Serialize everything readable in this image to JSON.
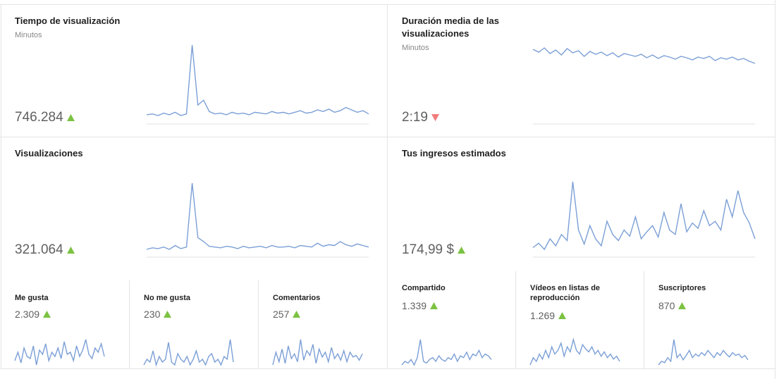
{
  "cards": [
    {
      "title": "Tiempo de visualización",
      "subtitle": "Minutos",
      "value": "746.284",
      "trend": "up",
      "sparkline": [
        10,
        11,
        9,
        12,
        10,
        13,
        9,
        11,
        96,
        22,
        28,
        14,
        11,
        12,
        10,
        13,
        11,
        12,
        10,
        13,
        12,
        11,
        14,
        12,
        13,
        11,
        13,
        15,
        12,
        13,
        16,
        14,
        17,
        13,
        15,
        19,
        16,
        13,
        15,
        11
      ]
    },
    {
      "title": "Duración media de las visualizaciones",
      "subtitle": "Minutos",
      "value": "2:19",
      "trend": "down",
      "sparkline": [
        80,
        76,
        82,
        74,
        79,
        72,
        81,
        75,
        78,
        70,
        77,
        73,
        76,
        71,
        75,
        69,
        74,
        72,
        70,
        73,
        68,
        72,
        67,
        71,
        69,
        66,
        70,
        68,
        65,
        69,
        67,
        70,
        64,
        68,
        66,
        69,
        65,
        67,
        63,
        60
      ]
    },
    {
      "title": "Visualizaciones",
      "value": "321.064",
      "trend": "up",
      "sparkline": [
        9,
        11,
        10,
        12,
        9,
        14,
        10,
        12,
        94,
        24,
        19,
        13,
        12,
        11,
        13,
        12,
        10,
        13,
        11,
        12,
        13,
        11,
        14,
        12,
        12,
        13,
        11,
        14,
        13,
        12,
        17,
        13,
        15,
        14,
        19,
        15,
        13,
        16,
        14,
        12
      ]
    },
    {
      "title": "Tus ingresos estimados",
      "value": "174,99 $",
      "trend": "up",
      "sparkline": [
        20,
        25,
        18,
        30,
        22,
        35,
        28,
        95,
        40,
        24,
        45,
        30,
        22,
        50,
        35,
        28,
        40,
        33,
        55,
        30,
        38,
        45,
        32,
        60,
        40,
        35,
        70,
        38,
        48,
        42,
        62,
        45,
        50,
        40,
        75,
        55,
        85,
        60,
        48,
        30
      ]
    },
    {
      "title": "Me gusta",
      "value": "2.309",
      "trend": "up",
      "sparkline": [
        40,
        60,
        35,
        70,
        50,
        45,
        75,
        30,
        65,
        55,
        80,
        40,
        60,
        50,
        70,
        45,
        85,
        55,
        60,
        40,
        75,
        50,
        65,
        90,
        55,
        45,
        70,
        60,
        80,
        50
      ]
    },
    {
      "title": "No me gusta",
      "value": "230",
      "trend": "up",
      "sparkline": [
        20,
        30,
        25,
        45,
        20,
        35,
        25,
        30,
        60,
        25,
        20,
        40,
        30,
        25,
        35,
        20,
        30,
        45,
        25,
        30,
        20,
        35,
        40,
        25,
        30,
        20,
        35,
        30,
        65,
        25
      ]
    },
    {
      "title": "Comentarios",
      "value": "257",
      "trend": "up",
      "sparkline": [
        10,
        50,
        20,
        60,
        15,
        70,
        30,
        45,
        20,
        90,
        25,
        55,
        40,
        75,
        15,
        60,
        35,
        50,
        20,
        65,
        30,
        45,
        25,
        55,
        20,
        50,
        35,
        40,
        25,
        45
      ]
    },
    {
      "title": "Compartido",
      "value": "1.339",
      "trend": "up",
      "sparkline": [
        20,
        30,
        25,
        35,
        20,
        40,
        90,
        30,
        25,
        35,
        40,
        30,
        45,
        35,
        30,
        40,
        35,
        50,
        30,
        45,
        40,
        55,
        35,
        50,
        45,
        60,
        40,
        50,
        45,
        35
      ]
    },
    {
      "title": "Vídeos en listas de reproducción",
      "value": "1.269",
      "trend": "up",
      "sparkline": [
        30,
        40,
        35,
        45,
        38,
        50,
        40,
        55,
        45,
        50,
        60,
        42,
        55,
        48,
        65,
        50,
        45,
        58,
        52,
        48,
        55,
        45,
        50,
        42,
        48,
        40,
        45,
        38,
        42,
        35
      ]
    },
    {
      "title": "Suscriptores",
      "value": "870",
      "trend": "up",
      "sparkline": [
        35,
        40,
        38,
        45,
        40,
        70,
        45,
        50,
        42,
        48,
        55,
        45,
        50,
        47,
        52,
        48,
        55,
        50,
        45,
        52,
        48,
        55,
        50,
        46,
        52,
        48,
        50,
        45,
        48,
        42
      ]
    }
  ]
}
